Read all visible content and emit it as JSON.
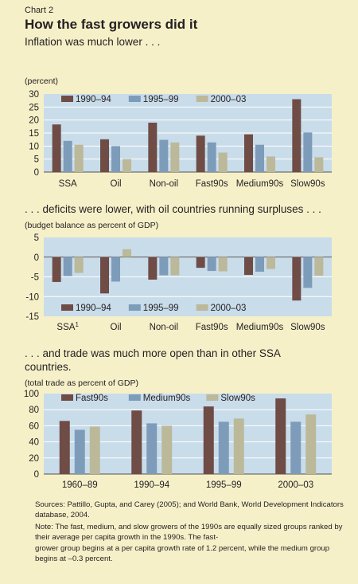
{
  "header": {
    "chart_label": "Chart 2",
    "title": "How the fast growers did it"
  },
  "colors": {
    "plot_bg": "#c9dcea",
    "s1": "#6f4c45",
    "s2": "#7d9cba",
    "s3": "#bbb99a",
    "grid": "#ffffff"
  },
  "footer": {
    "sources": "Sources: Pattillo, Gupta, and Carey (2005); and World Bank, World Development Indicators database, 2004.",
    "note_line1": "Note: The fast, medium, and slow growers of the 1990s are equally sized groups ranked by their average per capita growth in the 1990s. The fast-",
    "note_line2": "grower group begins at a per capita growth rate of 1.2 percent, while the medium group begins at –0.3 percent."
  },
  "chart_data": [
    {
      "type": "bar",
      "subtitle": "Inflation was much lower . . .",
      "unit_label": "(percent)",
      "categories": [
        "SSA",
        "Oil",
        "Non-oil",
        "Fast90s",
        "Medium90s",
        "Slow90s"
      ],
      "series": [
        {
          "name": "1990–94",
          "values": [
            18.3,
            12.6,
            19,
            14,
            14.5,
            28
          ]
        },
        {
          "name": "1995–99",
          "values": [
            12,
            10,
            12.4,
            11.4,
            10.5,
            15.2
          ]
        },
        {
          "name": "2000–03",
          "values": [
            10.5,
            5,
            11.4,
            7.5,
            6,
            5.7
          ]
        }
      ],
      "ylim": [
        0,
        30
      ],
      "yticks": [
        0,
        5,
        10,
        15,
        20,
        25,
        30
      ],
      "grid": true,
      "legend": "top"
    },
    {
      "type": "bar",
      "subtitle": ". . . deficits were lower, with oil countries running surpluses . . .",
      "unit_label": "(budget balance as percent of GDP)",
      "categories": [
        "SSA",
        "Oil",
        "Non-oil",
        "Fast90s",
        "Medium90s",
        "Slow90s"
      ],
      "category_footnotes": [
        "1",
        "",
        "",
        "",
        "",
        ""
      ],
      "series": [
        {
          "name": "1990–94",
          "values": [
            -6.3,
            -9.2,
            -5.7,
            -2.7,
            -4.5,
            -11
          ]
        },
        {
          "name": "1995–99",
          "values": [
            -4.8,
            -6.2,
            -4.6,
            -3.5,
            -3.7,
            -7.8
          ]
        },
        {
          "name": "2000–03",
          "values": [
            -4,
            2,
            -4.6,
            -3.6,
            -3,
            -4.7
          ]
        }
      ],
      "ylim": [
        -15,
        5
      ],
      "yticks": [
        -15,
        -10,
        -5,
        0,
        5
      ],
      "grid": true,
      "legend": "bottom"
    },
    {
      "type": "bar",
      "subtitle": ". . . and trade was much more open than in other SSA countries.",
      "unit_label": "(total trade as percent of GDP)",
      "categories": [
        "1960–89",
        "1990–94",
        "1995–99",
        "2000–03"
      ],
      "series": [
        {
          "name": "Fast90s",
          "values": [
            66,
            79,
            84,
            94
          ]
        },
        {
          "name": "Medium90s",
          "values": [
            55,
            63,
            65,
            65
          ]
        },
        {
          "name": "Slow90s",
          "values": [
            59,
            60,
            69,
            74
          ]
        }
      ],
      "ylim": [
        0,
        100
      ],
      "yticks": [
        0,
        20,
        40,
        60,
        80,
        100
      ],
      "grid": true,
      "legend": "top"
    }
  ]
}
